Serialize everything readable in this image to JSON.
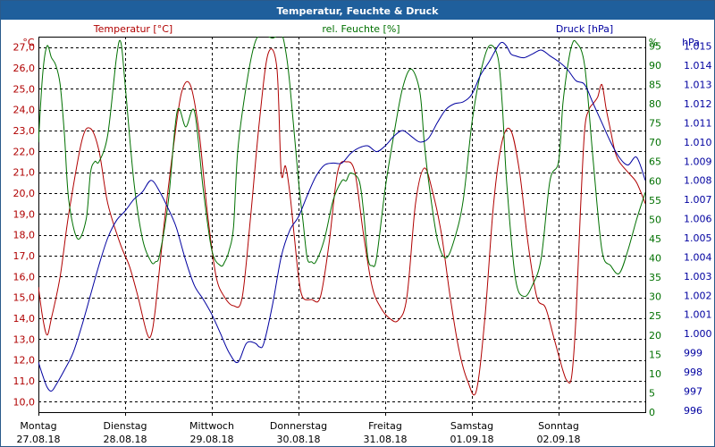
{
  "window": {
    "title": "Temperatur, Feuchte & Druck"
  },
  "chart_data": {
    "type": "line",
    "title": "Temperatur, Feuchte & Druck",
    "x_range": [
      0,
      7
    ],
    "x_ticks": [
      {
        "day": "Montag",
        "date": "27.08.18"
      },
      {
        "day": "Dienstag",
        "date": "28.08.18"
      },
      {
        "day": "Mittwoch",
        "date": "29.08.18"
      },
      {
        "day": "Donnerstag",
        "date": "30.08.18"
      },
      {
        "day": "Freitag",
        "date": "31.08.18"
      },
      {
        "day": "Samstag",
        "date": "01.09.18"
      },
      {
        "day": "Sonntag",
        "date": "02.09.18"
      }
    ],
    "colors": {
      "temperature": "#b00000",
      "humidity": "#007000",
      "pressure": "#0000a0",
      "grid": "#000000"
    },
    "axes": {
      "temperature": {
        "label": "Temperatur [°C]",
        "unit": "°C",
        "min": 9.5,
        "max": 27.5,
        "ticks": [
          "10,0",
          "11,0",
          "12,0",
          "13,0",
          "14,0",
          "15,0",
          "16,0",
          "17,0",
          "18,0",
          "19,0",
          "20,0",
          "21,0",
          "22,0",
          "23,0",
          "24,0",
          "25,0",
          "26,0",
          "27,0"
        ]
      },
      "humidity": {
        "label": "rel. Feuchte [%]",
        "unit": "%",
        "min": 0,
        "max": 97.4,
        "ticks": [
          "0",
          "5",
          "10",
          "15",
          "20",
          "25",
          "30",
          "35",
          "40",
          "45",
          "50",
          "55",
          "60",
          "65",
          "70",
          "75",
          "80",
          "85",
          "90",
          "95"
        ]
      },
      "pressure": {
        "label": "Druck [hPa]",
        "unit": "hPa",
        "min": 995.9,
        "max": 1015.5,
        "ticks": [
          "996",
          "997",
          "998",
          "999",
          "1.000",
          "1.001",
          "1.002",
          "1.003",
          "1.004",
          "1.005",
          "1.006",
          "1.007",
          "1.008",
          "1.009",
          "1.010",
          "1.011",
          "1.012",
          "1.013",
          "1.014",
          "1.015"
        ]
      }
    },
    "series": [
      {
        "name": "Temperatur",
        "axis": "temperature",
        "x": [
          0,
          0.05,
          0.1,
          0.15,
          0.25,
          0.35,
          0.5,
          0.6,
          0.7,
          0.8,
          0.95,
          1.05,
          1.15,
          1.25,
          1.3,
          1.35,
          1.45,
          1.55,
          1.65,
          1.75,
          1.85,
          1.95,
          2.05,
          2.15,
          2.25,
          2.35,
          2.45,
          2.55,
          2.65,
          2.75,
          2.8,
          2.85,
          2.9,
          2.95,
          3.0,
          3.05,
          3.15,
          3.25,
          3.35,
          3.45,
          3.55,
          3.65,
          3.75,
          3.85,
          3.95,
          4.05,
          4.15,
          4.25,
          4.35,
          4.45,
          4.55,
          4.65,
          4.75,
          4.85,
          4.95,
          5.05,
          5.15,
          5.25,
          5.35,
          5.45,
          5.55,
          5.65,
          5.75,
          5.85,
          5.95,
          6.05,
          6.1,
          6.15,
          6.2,
          6.25,
          6.3,
          6.35,
          6.4,
          6.45,
          6.5,
          6.55,
          6.6,
          6.65,
          6.7,
          6.8,
          6.9,
          7.0
        ],
        "values": [
          15.5,
          14.0,
          13.2,
          14.0,
          16.0,
          19.0,
          22.5,
          23.1,
          22.0,
          19.5,
          17.5,
          16.5,
          15.0,
          13.3,
          13.2,
          14.5,
          18.5,
          22.0,
          24.8,
          25.2,
          23.0,
          19.0,
          16.0,
          15.0,
          14.6,
          15.0,
          19.0,
          23.5,
          26.7,
          26.0,
          21.0,
          21.3,
          20.0,
          18.0,
          16.0,
          15.0,
          14.9,
          15.0,
          17.5,
          21.0,
          21.5,
          21.0,
          18.0,
          15.5,
          14.5,
          14.0,
          13.9,
          15.0,
          19.5,
          21.2,
          20.0,
          18.0,
          15.0,
          12.5,
          11.0,
          10.5,
          14.0,
          19.5,
          22.5,
          23.0,
          21.0,
          17.5,
          15.0,
          14.5,
          13.0,
          11.5,
          11.0,
          11.2,
          14.0,
          19.0,
          23.0,
          24.0,
          24.3,
          24.6,
          25.2,
          24.0,
          23.0,
          22.0,
          21.5,
          21.0,
          20.5,
          19.5
        ]
      },
      {
        "name": "rel. Feuchte",
        "axis": "humidity",
        "x": [
          0,
          0.05,
          0.1,
          0.15,
          0.2,
          0.25,
          0.3,
          0.35,
          0.45,
          0.55,
          0.6,
          0.65,
          0.7,
          0.8,
          0.9,
          0.95,
          1.0,
          1.1,
          1.2,
          1.3,
          1.35,
          1.4,
          1.5,
          1.6,
          1.7,
          1.8,
          1.9,
          2.0,
          2.1,
          2.15,
          2.2,
          2.25,
          2.3,
          2.4,
          2.5,
          2.6,
          2.7,
          2.8,
          2.85,
          2.9,
          3.0,
          3.05,
          3.1,
          3.15,
          3.2,
          3.3,
          3.4,
          3.5,
          3.55,
          3.6,
          3.7,
          3.75,
          3.8,
          3.85,
          3.9,
          4.0,
          4.1,
          4.2,
          4.3,
          4.4,
          4.45,
          4.5,
          4.6,
          4.7,
          4.8,
          4.9,
          5.0,
          5.1,
          5.2,
          5.3,
          5.35,
          5.4,
          5.5,
          5.6,
          5.7,
          5.8,
          5.9,
          6.0,
          6.05,
          6.1,
          6.15,
          6.2,
          6.3,
          6.4,
          6.5,
          6.6,
          6.7,
          6.8,
          6.9,
          7.0
        ],
        "values": [
          70,
          88,
          95,
          92,
          90,
          85,
          72,
          55,
          45,
          50,
          62,
          65,
          65,
          72,
          92,
          96,
          85,
          60,
          45,
          39,
          39,
          41,
          55,
          78,
          74,
          78,
          58,
          42,
          38,
          39,
          42,
          48,
          68,
          85,
          96,
          98,
          97,
          98,
          94,
          85,
          60,
          50,
          40,
          39,
          39,
          45,
          55,
          60,
          60,
          62,
          60,
          52,
          40,
          38,
          40,
          58,
          72,
          84,
          89,
          83,
          70,
          60,
          45,
          40,
          45,
          55,
          75,
          88,
          95,
          92,
          80,
          60,
          35,
          30,
          33,
          40,
          60,
          65,
          80,
          89,
          95,
          96,
          90,
          65,
          42,
          38,
          36,
          42,
          50,
          57
        ]
      },
      {
        "name": "Druck",
        "axis": "pressure",
        "x": [
          0,
          0.05,
          0.1,
          0.15,
          0.2,
          0.3,
          0.4,
          0.5,
          0.6,
          0.7,
          0.8,
          0.9,
          1.0,
          1.1,
          1.2,
          1.3,
          1.4,
          1.5,
          1.55,
          1.6,
          1.7,
          1.8,
          1.9,
          2.0,
          2.1,
          2.2,
          2.3,
          2.4,
          2.5,
          2.55,
          2.6,
          2.7,
          2.8,
          2.9,
          3.0,
          3.1,
          3.2,
          3.3,
          3.4,
          3.5,
          3.6,
          3.7,
          3.8,
          3.9,
          4.0,
          4.1,
          4.2,
          4.3,
          4.4,
          4.5,
          4.6,
          4.7,
          4.8,
          4.9,
          5.0,
          5.1,
          5.2,
          5.3,
          5.35,
          5.4,
          5.45,
          5.5,
          5.6,
          5.7,
          5.8,
          5.9,
          6.0,
          6.1,
          6.2,
          6.3,
          6.4,
          6.5,
          6.6,
          6.7,
          6.8,
          6.9,
          7.0
        ],
        "values": [
          998.5,
          997.8,
          997.2,
          997.0,
          997.3,
          998.1,
          999.0,
          1000.4,
          1002.0,
          1003.6,
          1005.0,
          1005.9,
          1006.4,
          1007.0,
          1007.4,
          1008.0,
          1007.4,
          1006.5,
          1006.0,
          1005.4,
          1003.8,
          1002.5,
          1001.8,
          1001.0,
          1000.0,
          999.0,
          998.5,
          999.5,
          999.5,
          999.3,
          999.5,
          1001.5,
          1004.0,
          1005.4,
          1006.1,
          1007.2,
          1008.2,
          1008.8,
          1008.9,
          1008.9,
          1009.4,
          1009.7,
          1009.8,
          1009.5,
          1009.8,
          1010.3,
          1010.6,
          1010.3,
          1010.0,
          1010.2,
          1011.0,
          1011.7,
          1012.0,
          1012.1,
          1012.5,
          1013.5,
          1014.2,
          1015.0,
          1015.2,
          1015.0,
          1014.6,
          1014.5,
          1014.4,
          1014.6,
          1014.8,
          1014.5,
          1014.2,
          1013.8,
          1013.2,
          1013.0,
          1012.0,
          1011.0,
          1010.0,
          1009.2,
          1008.8,
          1009.2,
          1008.0
        ]
      }
    ]
  }
}
